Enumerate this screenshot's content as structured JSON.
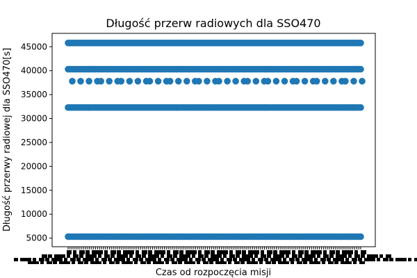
{
  "chart_data": {
    "type": "scatter",
    "title": "Długość przerw radiowych dla SSO470",
    "xlabel": "Czas od rozpoczęcia misji",
    "ylabel": "Długość przerwy radiowej dla SSO470[s]",
    "ylim": [
      3200,
      47800
    ],
    "yticks": [
      5000,
      10000,
      15000,
      20000,
      25000,
      30000,
      35000,
      40000,
      45000
    ],
    "x_ticks_note": "x tick labels are overlapping and illegible",
    "grid": false,
    "marker_color": "#1f77b4",
    "series": [
      {
        "y": 45800,
        "count": 150
      },
      {
        "y": 40300,
        "count": 150
      },
      {
        "y": 37800,
        "count": 42
      },
      {
        "y": 32300,
        "count": 150
      },
      {
        "y": 5300,
        "count": 150
      }
    ]
  }
}
